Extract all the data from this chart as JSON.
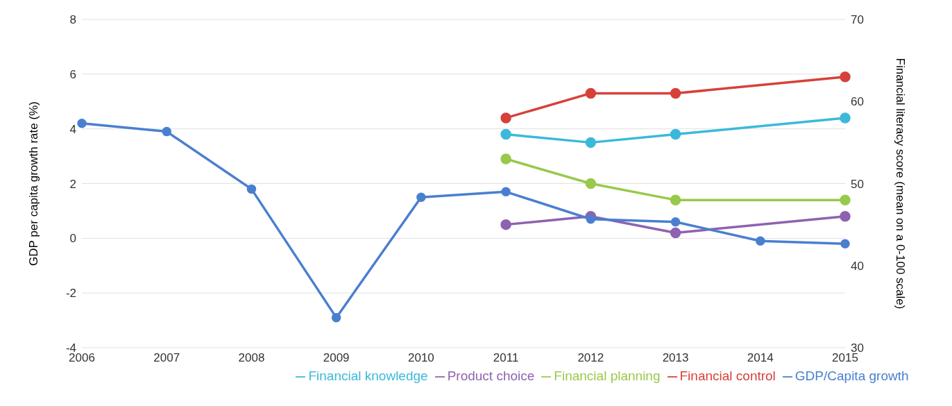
{
  "chart_data": {
    "type": "line",
    "categories": [
      "2006",
      "2007",
      "2008",
      "2009",
      "2010",
      "2011",
      "2012",
      "2013",
      "2014",
      "2015"
    ],
    "ylabel": "GDP per capita growth rate (%)",
    "y2label": "Financial literacy score (mean on a 0-100 scale)",
    "ylim": [
      -4,
      8
    ],
    "yticks": [
      -4,
      -2,
      0,
      2,
      4,
      6,
      8
    ],
    "y2lim": [
      30,
      70
    ],
    "y2ticks": [
      30,
      40,
      50,
      60,
      70
    ],
    "grid": "y",
    "legend": "bottom",
    "marker": "circle",
    "line_style": "solid",
    "series": [
      {
        "name": "GDP/Capita growth",
        "color": "#4a7fd0",
        "values": [
          4.2,
          3.9,
          1.8,
          -2.9,
          1.5,
          1.7,
          0.7,
          0.6,
          -0.1,
          -0.2
        ]
      },
      {
        "name": "Financial control",
        "color": "#d7413a",
        "axis": "y2",
        "values": [
          null,
          null,
          null,
          null,
          null,
          58,
          61,
          61,
          null,
          63
        ]
      },
      {
        "name": "Financial planning",
        "color": "#98c94a",
        "axis": "y2",
        "values": [
          null,
          null,
          null,
          null,
          null,
          53,
          50,
          48,
          null,
          48
        ]
      },
      {
        "name": "Product choice",
        "color": "#8e62b0",
        "axis": "y2",
        "values": [
          null,
          null,
          null,
          null,
          null,
          45,
          46,
          44,
          null,
          46
        ]
      },
      {
        "name": "Financial knowledge",
        "color": "#3bb9db",
        "axis": "y2",
        "values": [
          null,
          null,
          null,
          null,
          null,
          56,
          55,
          56,
          null,
          58
        ]
      }
    ]
  }
}
